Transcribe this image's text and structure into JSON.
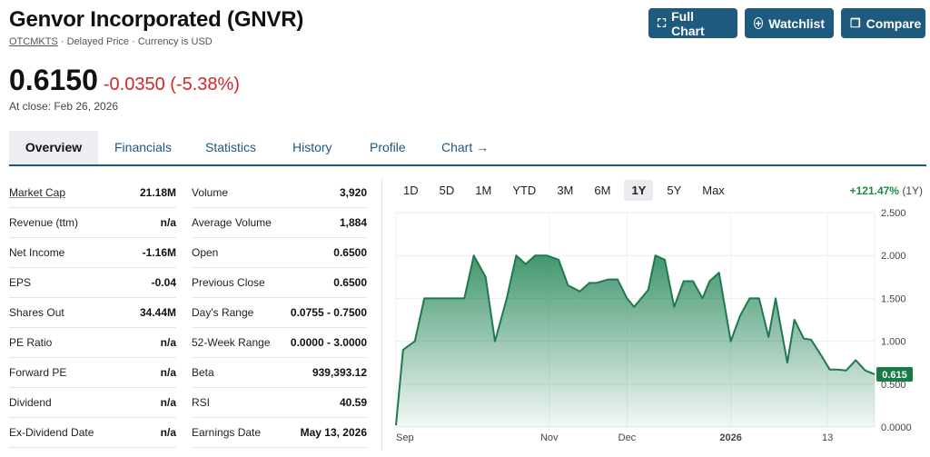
{
  "header": {
    "title": "Genvor Incorporated (GNVR)",
    "exchange": "OTCMKTS",
    "meta": "· Delayed Price · Currency is USD",
    "price": "0.6150",
    "change": "-0.0350 (-5.38%)",
    "close_date": "At close: Feb 26, 2026"
  },
  "buttons": {
    "full_chart": "Full Chart",
    "watchlist": "Watchlist",
    "compare": "Compare"
  },
  "tabs": [
    "Overview",
    "Financials",
    "Statistics",
    "History",
    "Profile",
    "Chart →"
  ],
  "stats_left": [
    {
      "label": "Market Cap",
      "value": "21.18M"
    },
    {
      "label": "Revenue (ttm)",
      "value": "n/a"
    },
    {
      "label": "Net Income",
      "value": "-1.16M"
    },
    {
      "label": "EPS",
      "value": "-0.04"
    },
    {
      "label": "Shares Out",
      "value": "34.44M"
    },
    {
      "label": "PE Ratio",
      "value": "n/a"
    },
    {
      "label": "Forward PE",
      "value": "n/a"
    },
    {
      "label": "Dividend",
      "value": "n/a"
    },
    {
      "label": "Ex-Dividend Date",
      "value": "n/a"
    }
  ],
  "stats_right": [
    {
      "label": "Volume",
      "value": "3,920"
    },
    {
      "label": "Average Volume",
      "value": "1,884"
    },
    {
      "label": "Open",
      "value": "0.6500"
    },
    {
      "label": "Previous Close",
      "value": "0.6500"
    },
    {
      "label": "Day's Range",
      "value": "0.0755 - 0.7500"
    },
    {
      "label": "52-Week Range",
      "value": "0.0000 - 3.0000"
    },
    {
      "label": "Beta",
      "value": "939,393.12"
    },
    {
      "label": "RSI",
      "value": "40.59"
    },
    {
      "label": "Earnings Date",
      "value": "May 13, 2026"
    }
  ],
  "chart": {
    "ranges": [
      "1D",
      "5D",
      "1M",
      "YTD",
      "3M",
      "6M",
      "1Y",
      "5Y",
      "Max"
    ],
    "active_range": "1Y",
    "performance": "+121.47%",
    "performance_period": "(1Y)",
    "last_price_label": "0.615",
    "colors": {
      "line": "#1e7a4c",
      "fill_top": "#2e8b60",
      "badge": "#1b7a4a",
      "change": "#d1262c",
      "positive": "#1e8a3c",
      "brand": "#1d5a7e"
    }
  },
  "chart_data": {
    "type": "area",
    "x_tick_labels": [
      "Sep",
      "Nov",
      "Dec",
      "2026",
      "13"
    ],
    "y_tick_labels": [
      "2.500",
      "2.000",
      "1.500",
      "1.000",
      "0.500",
      "0.0000"
    ],
    "ylim": [
      0,
      2.5
    ],
    "grid": true,
    "points": [
      {
        "x": "2025-08-27",
        "y": 0.02
      },
      {
        "x": "2025-08-30",
        "y": 0.9
      },
      {
        "x": "2025-09-04",
        "y": 1.0
      },
      {
        "x": "2025-09-08",
        "y": 1.5
      },
      {
        "x": "2025-09-13",
        "y": 1.5
      },
      {
        "x": "2025-09-18",
        "y": 1.5
      },
      {
        "x": "2025-09-25",
        "y": 1.5
      },
      {
        "x": "2025-09-29",
        "y": 2.0
      },
      {
        "x": "2025-10-04",
        "y": 1.75
      },
      {
        "x": "2025-10-08",
        "y": 1.0
      },
      {
        "x": "2025-10-13",
        "y": 1.5
      },
      {
        "x": "2025-10-17",
        "y": 2.0
      },
      {
        "x": "2025-10-21",
        "y": 1.9
      },
      {
        "x": "2025-10-25",
        "y": 2.0
      },
      {
        "x": "2025-10-30",
        "y": 2.0
      },
      {
        "x": "2025-11-04",
        "y": 1.95
      },
      {
        "x": "2025-11-08",
        "y": 1.65
      },
      {
        "x": "2025-11-13",
        "y": 1.58
      },
      {
        "x": "2025-11-17",
        "y": 1.68
      },
      {
        "x": "2025-11-20",
        "y": 1.68
      },
      {
        "x": "2025-11-25",
        "y": 1.72
      },
      {
        "x": "2025-11-29",
        "y": 1.72
      },
      {
        "x": "2025-12-03",
        "y": 1.5
      },
      {
        "x": "2025-12-06",
        "y": 1.4
      },
      {
        "x": "2025-12-12",
        "y": 1.6
      },
      {
        "x": "2025-12-15",
        "y": 2.0
      },
      {
        "x": "2025-12-19",
        "y": 1.95
      },
      {
        "x": "2025-12-23",
        "y": 1.4
      },
      {
        "x": "2025-12-27",
        "y": 1.7
      },
      {
        "x": "2025-12-31",
        "y": 1.7
      },
      {
        "x": "2026-01-04",
        "y": 1.5
      },
      {
        "x": "2026-01-07",
        "y": 1.7
      },
      {
        "x": "2026-01-11",
        "y": 1.8
      },
      {
        "x": "2026-01-16",
        "y": 1.0
      },
      {
        "x": "2026-01-20",
        "y": 1.3
      },
      {
        "x": "2026-01-24",
        "y": 1.5
      },
      {
        "x": "2026-01-28",
        "y": 1.5
      },
      {
        "x": "2026-02-01",
        "y": 1.05
      },
      {
        "x": "2026-02-04",
        "y": 1.5
      },
      {
        "x": "2026-02-09",
        "y": 0.75
      },
      {
        "x": "2026-02-12",
        "y": 1.25
      },
      {
        "x": "2026-02-16",
        "y": 1.03
      },
      {
        "x": "2026-02-19",
        "y": 1.02
      },
      {
        "x": "2026-02-23",
        "y": 0.85
      },
      {
        "x": "2026-02-27",
        "y": 0.67
      },
      {
        "x": "2026-03-02",
        "y": 0.67
      },
      {
        "x": "2026-03-06",
        "y": 0.66
      },
      {
        "x": "2026-03-10",
        "y": 0.78
      },
      {
        "x": "2026-03-14",
        "y": 0.66
      },
      {
        "x": "2026-03-18",
        "y": 0.615
      }
    ]
  }
}
